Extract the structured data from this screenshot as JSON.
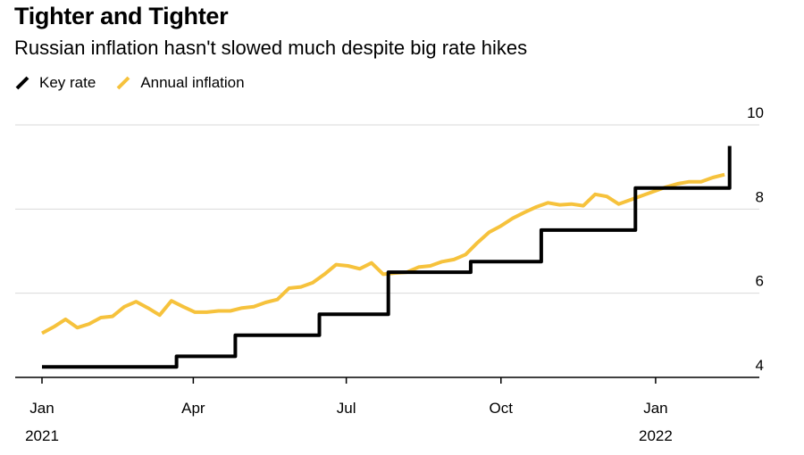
{
  "title": "Tighter and Tighter",
  "subtitle": "Russian inflation hasn't slowed much despite big rate hikes",
  "colors": {
    "key_rate": "#000000",
    "inflation": "#f6c23c",
    "grid": "#d9d9d9",
    "axis": "#000000"
  },
  "chart_data": {
    "type": "line",
    "title": "Tighter and Tighter",
    "subtitle": "Russian inflation hasn't slowed much despite big rate hikes",
    "x_ticks": [
      {
        "date": "2021-01-01",
        "label": "Jan",
        "year": "2021"
      },
      {
        "date": "2021-04-01",
        "label": "Apr",
        "year": ""
      },
      {
        "date": "2021-07-01",
        "label": "Jul",
        "year": ""
      },
      {
        "date": "2021-10-01",
        "label": "Oct",
        "year": ""
      },
      {
        "date": "2022-01-01",
        "label": "Jan",
        "year": "2022"
      }
    ],
    "xlim": [
      "2021-01-01",
      "2022-02-20"
    ],
    "ylim": [
      4,
      10
    ],
    "y_ticks": [
      4,
      6,
      8,
      10
    ],
    "y_axis_position": "right",
    "grid": true,
    "legend": "top-left",
    "series": [
      {
        "name": "Key rate",
        "color": "#000000",
        "step": true,
        "x": [
          "2021-01-01",
          "2021-03-22",
          "2021-04-26",
          "2021-06-15",
          "2021-07-26",
          "2021-09-13",
          "2021-10-25",
          "2021-12-20",
          "2022-02-11",
          "2022-02-14"
        ],
        "y": [
          4.25,
          4.5,
          5.0,
          5.5,
          6.5,
          6.75,
          7.5,
          8.5,
          8.5,
          9.5
        ]
      },
      {
        "name": "Annual inflation",
        "color": "#f6c23c",
        "step": false,
        "x": [
          "2021-01-01",
          "2021-01-08",
          "2021-01-15",
          "2021-01-22",
          "2021-01-29",
          "2021-02-05",
          "2021-02-12",
          "2021-02-19",
          "2021-02-26",
          "2021-03-05",
          "2021-03-12",
          "2021-03-19",
          "2021-03-26",
          "2021-04-02",
          "2021-04-09",
          "2021-04-16",
          "2021-04-23",
          "2021-04-30",
          "2021-05-07",
          "2021-05-14",
          "2021-05-21",
          "2021-05-28",
          "2021-06-04",
          "2021-06-11",
          "2021-06-18",
          "2021-06-25",
          "2021-07-02",
          "2021-07-09",
          "2021-07-16",
          "2021-07-23",
          "2021-07-30",
          "2021-08-06",
          "2021-08-13",
          "2021-08-20",
          "2021-08-27",
          "2021-09-03",
          "2021-09-10",
          "2021-09-17",
          "2021-09-24",
          "2021-10-01",
          "2021-10-08",
          "2021-10-15",
          "2021-10-22",
          "2021-10-29",
          "2021-11-05",
          "2021-11-12",
          "2021-11-19",
          "2021-11-26",
          "2021-12-03",
          "2021-12-10",
          "2021-12-17",
          "2021-12-24",
          "2021-12-31",
          "2022-01-07",
          "2022-01-14",
          "2022-01-21",
          "2022-01-28",
          "2022-02-04",
          "2022-02-11"
        ],
        "y": [
          5.05,
          5.2,
          5.38,
          5.18,
          5.27,
          5.42,
          5.45,
          5.68,
          5.8,
          5.65,
          5.48,
          5.82,
          5.68,
          5.55,
          5.55,
          5.58,
          5.58,
          5.65,
          5.68,
          5.78,
          5.85,
          6.12,
          6.15,
          6.25,
          6.45,
          6.68,
          6.65,
          6.58,
          6.72,
          6.45,
          6.48,
          6.5,
          6.62,
          6.65,
          6.75,
          6.8,
          6.92,
          7.2,
          7.45,
          7.6,
          7.78,
          7.92,
          8.05,
          8.15,
          8.1,
          8.12,
          8.08,
          8.35,
          8.3,
          8.12,
          8.22,
          8.32,
          8.42,
          8.52,
          8.6,
          8.65,
          8.65,
          8.75,
          8.82
        ]
      }
    ]
  }
}
